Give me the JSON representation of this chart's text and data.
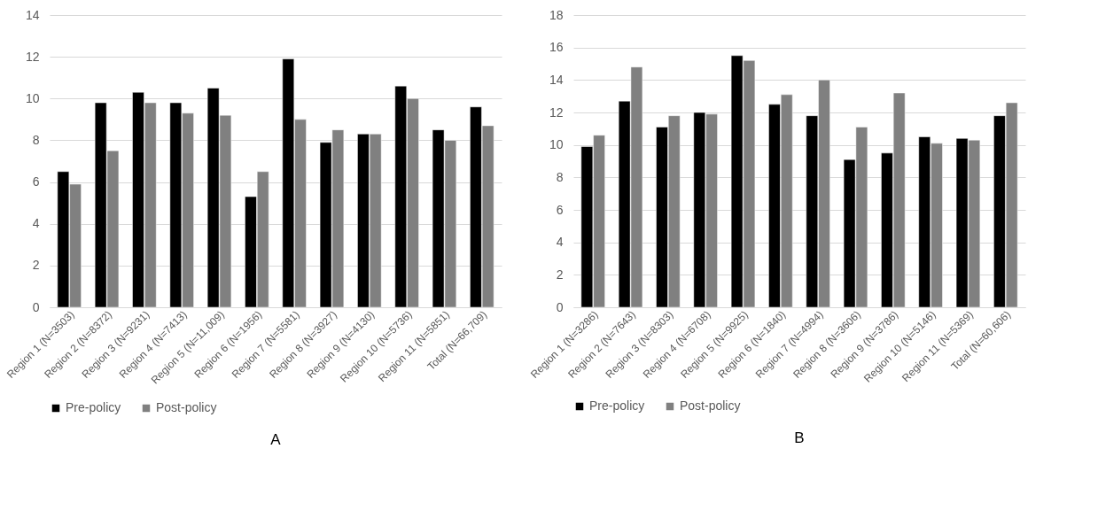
{
  "chart_data": [
    {
      "type": "bar",
      "title": "A",
      "categories": [
        "Region 1 (N=3503)",
        "Region 2 (N=8372)",
        "Region 3 (N=9231)",
        "Region 4 (N=7413)",
        "Region 5 (N=11,009)",
        "Region 6 (N=1956)",
        "Region 7 (N=5581)",
        "Region 8 (N=3927)",
        "Region 9 (N=4130)",
        "Region 10 (N=5736)",
        "Region 11 (N=5851)",
        "Total (N=66,709)"
      ],
      "series": [
        {
          "name": "Pre-policy",
          "color": "#000000",
          "values": [
            6.5,
            9.8,
            10.3,
            9.8,
            10.5,
            5.3,
            11.9,
            7.9,
            8.3,
            10.6,
            8.5,
            9.6
          ]
        },
        {
          "name": "Post-policy",
          "color": "#808080",
          "values": [
            5.9,
            7.5,
            9.8,
            9.3,
            9.2,
            6.5,
            9.0,
            8.5,
            8.3,
            10.0,
            8.0,
            8.7
          ]
        }
      ],
      "ylim": [
        0,
        14
      ],
      "yticks": [
        0,
        2,
        4,
        6,
        8,
        10,
        12,
        14
      ],
      "grid": "y",
      "legend": "bottom"
    },
    {
      "type": "bar",
      "title": "B",
      "categories": [
        "Region 1 (N=3286)",
        "Region 2 (N=7643)",
        "Region 3 (N=8303)",
        "Region 4 (N=6708)",
        "Region 5 (N=9925)",
        "Region 6 (N=1840)",
        "Region 7 (N=4994)",
        "Region 8 (N=3606)",
        "Region 9 (N=3786)",
        "Region 10 (N=5146)",
        "Region 11 (N=5369)",
        "Total (N=60,606)"
      ],
      "series": [
        {
          "name": "Pre-policy",
          "color": "#000000",
          "values": [
            9.9,
            12.7,
            11.1,
            12.0,
            15.5,
            12.5,
            11.8,
            9.1,
            9.5,
            10.5,
            10.4,
            11.8
          ]
        },
        {
          "name": "Post-policy",
          "color": "#808080",
          "values": [
            10.6,
            14.8,
            11.8,
            11.9,
            15.2,
            13.1,
            14.0,
            11.1,
            13.2,
            10.1,
            10.3,
            12.6
          ]
        }
      ],
      "ylim": [
        0,
        18
      ],
      "yticks": [
        0,
        2,
        4,
        6,
        8,
        10,
        12,
        14,
        16,
        18
      ],
      "grid": "y",
      "legend": "bottom"
    }
  ]
}
